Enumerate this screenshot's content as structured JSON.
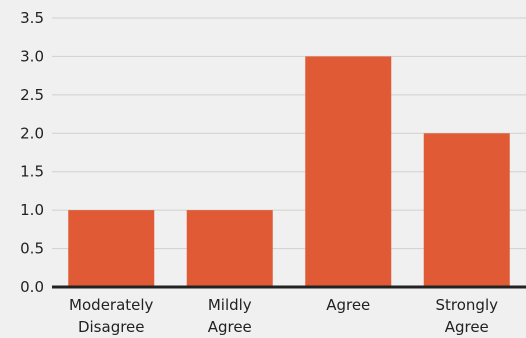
{
  "chart_data": {
    "type": "bar",
    "categories": [
      [
        "Moderately",
        "Disagree"
      ],
      [
        "Mildly",
        "Agree"
      ],
      [
        "Agree"
      ],
      [
        "Strongly",
        "Agree"
      ]
    ],
    "values": [
      1.0,
      1.0,
      3.0,
      2.0
    ],
    "ylim": [
      0,
      3.5
    ],
    "yticks": [
      "0.0",
      "0.5",
      "1.0",
      "1.5",
      "2.0",
      "2.5",
      "3.0",
      "3.5"
    ],
    "grid": true,
    "title": "",
    "xlabel": "",
    "ylabel": "",
    "colors": {
      "bar": "#E05A35",
      "grid": "#d0d0d0",
      "axis": "#222222",
      "background": "#f0f0f0"
    }
  }
}
